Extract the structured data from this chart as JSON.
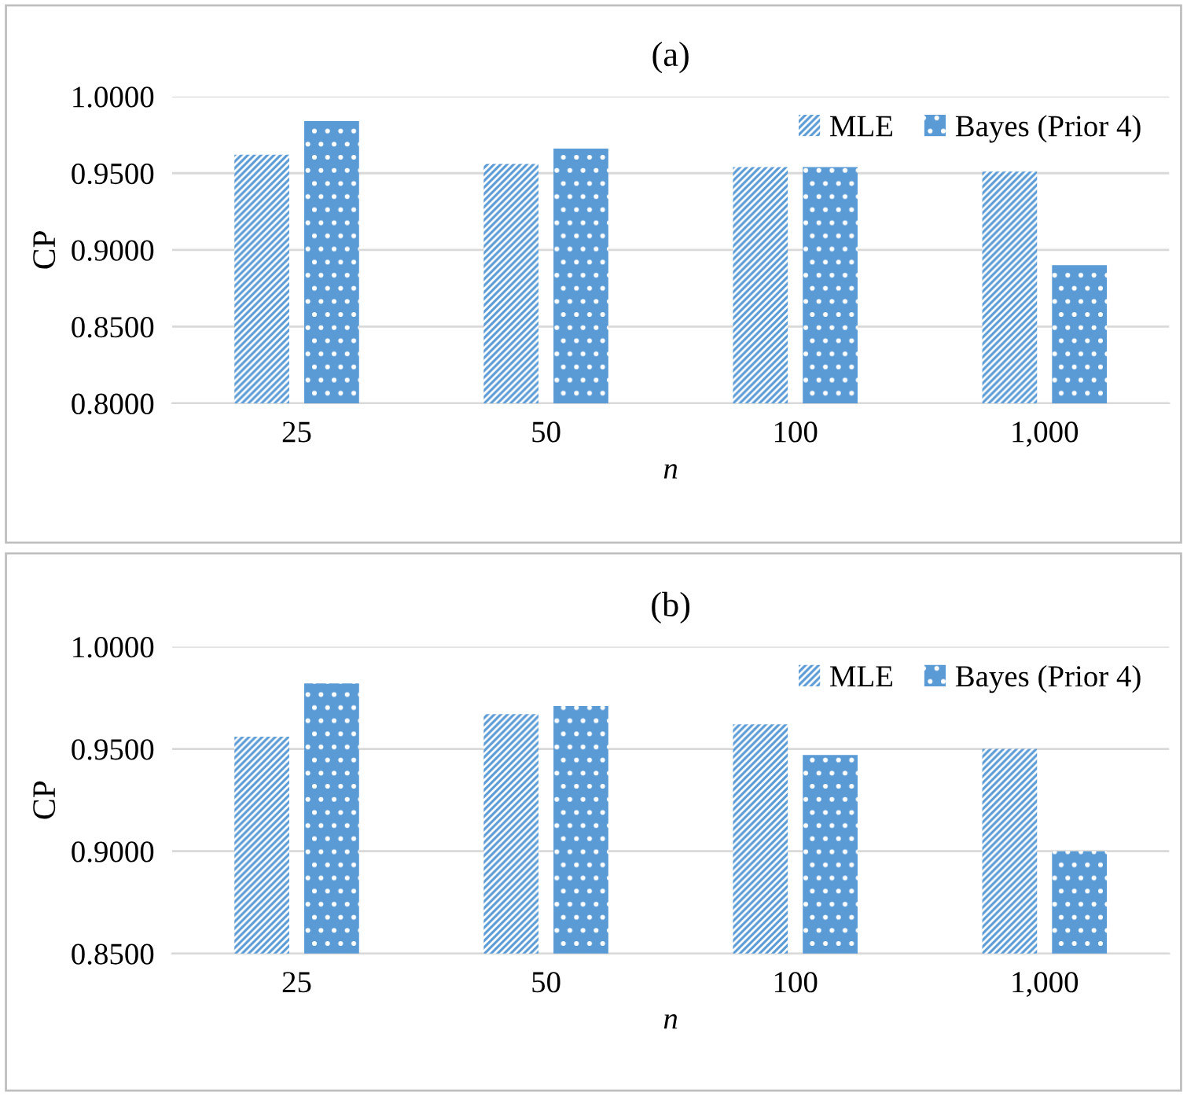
{
  "chart_data": [
    {
      "type": "bar",
      "title": "(a)",
      "xlabel": "n",
      "ylabel": "CP",
      "categories": [
        "25",
        "50",
        "100",
        "1,000"
      ],
      "series": [
        {
          "name": "MLE",
          "color": "#5b9bd5",
          "values": [
            0.962,
            0.956,
            0.954,
            0.951
          ]
        },
        {
          "name": "Bayes (Prior 4)",
          "color": "#5b9bd5",
          "values": [
            0.984,
            0.966,
            0.954,
            0.89
          ]
        }
      ],
      "ylim": [
        0.8,
        1.0
      ],
      "yticks": [
        {
          "value": 0.8,
          "label": "0.8000"
        },
        {
          "value": 0.85,
          "label": "0.8500"
        },
        {
          "value": 0.9,
          "label": "0.9000"
        },
        {
          "value": 0.95,
          "label": "0.9500"
        },
        {
          "value": 1.0,
          "label": "1.0000"
        }
      ],
      "grid": "y",
      "legend": "top right"
    },
    {
      "type": "bar",
      "title": "(b)",
      "xlabel": "n",
      "ylabel": "CP",
      "categories": [
        "25",
        "50",
        "100",
        "1,000"
      ],
      "series": [
        {
          "name": "MLE",
          "color": "#5b9bd5",
          "values": [
            0.956,
            0.967,
            0.962,
            0.95
          ]
        },
        {
          "name": "Bayes (Prior 4)",
          "color": "#5b9bd5",
          "values": [
            0.982,
            0.971,
            0.947,
            0.9
          ]
        }
      ],
      "ylim": [
        0.85,
        1.0
      ],
      "yticks": [
        {
          "value": 0.85,
          "label": "0.8500"
        },
        {
          "value": 0.9,
          "label": "0.9000"
        },
        {
          "value": 0.95,
          "label": "0.9500"
        },
        {
          "value": 1.0,
          "label": "1.0000"
        }
      ],
      "grid": "y",
      "legend": "top right"
    }
  ]
}
